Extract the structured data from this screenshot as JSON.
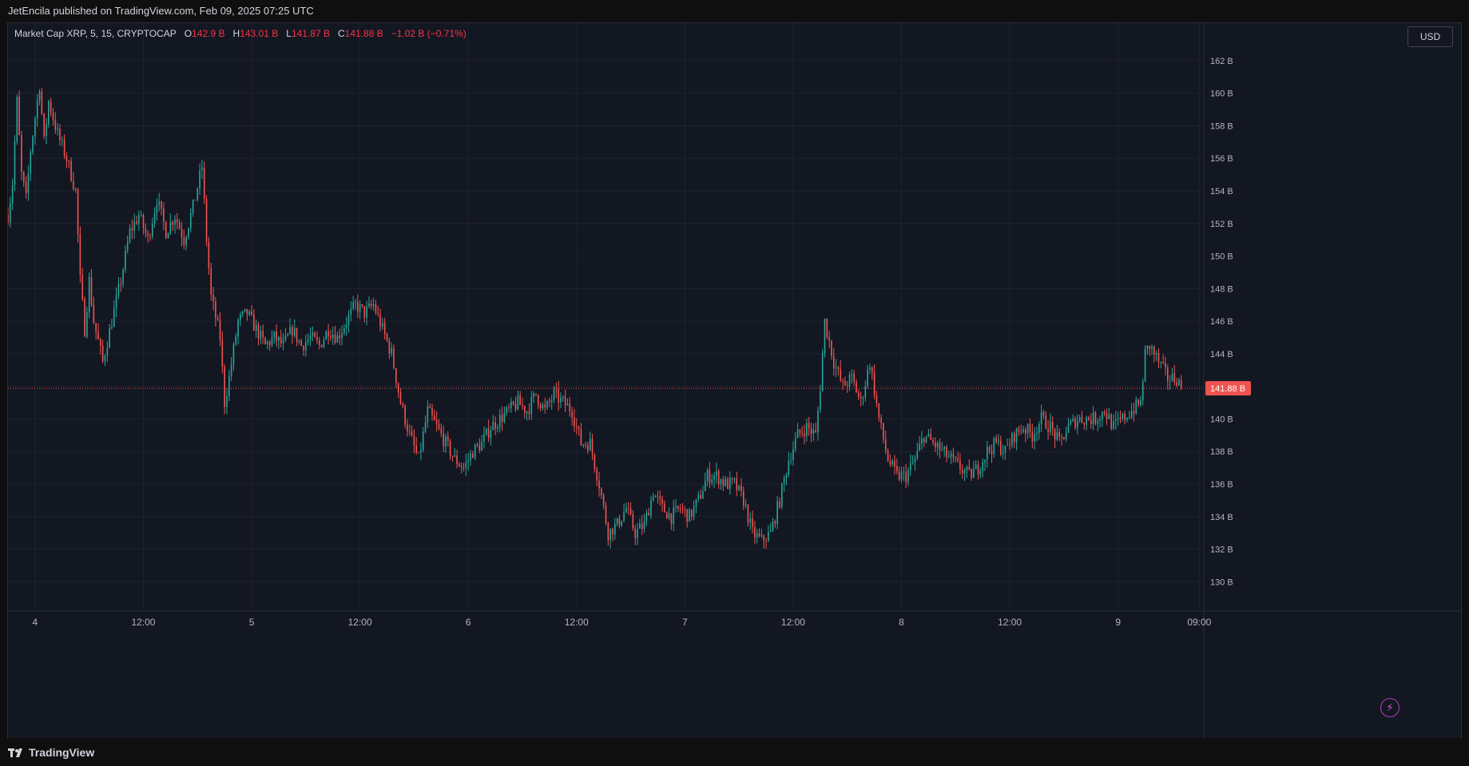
{
  "header": {
    "published_text": "JetEncila published on TradingView.com, Feb 09, 2025 07:25 UTC"
  },
  "legend": {
    "symbol_text": "Market Cap XRP, 5, 15, CRYPTOCAP",
    "o_label": "O",
    "o_value": "142.9 B",
    "h_label": "H",
    "h_value": "143.01 B",
    "l_label": "L",
    "l_value": "141.87 B",
    "c_label": "C",
    "c_value": "141.88 B",
    "change": "−1.02 B (−0.71%)"
  },
  "currency_button": "USD",
  "footer": {
    "brand": "TradingView"
  },
  "colors": {
    "up": "#26a69a",
    "down": "#ef5350",
    "bg": "#131722",
    "grid": "#1e222d",
    "price_line": "#ef5350"
  },
  "chart_data": {
    "type": "candlestick",
    "y_unit": "B",
    "ylim": [
      128.2,
      164.3
    ],
    "y_ticks": [
      "130 B",
      "132 B",
      "134 B",
      "136 B",
      "138 B",
      "140 B",
      "142 B",
      "144 B",
      "146 B",
      "148 B",
      "150 B",
      "152 B",
      "154 B",
      "156 B",
      "158 B",
      "160 B",
      "162 B"
    ],
    "y_tick_values": [
      130,
      132,
      134,
      136,
      138,
      140,
      142,
      144,
      146,
      148,
      150,
      152,
      154,
      156,
      158,
      160,
      162
    ],
    "x_ticks": [
      "4",
      "12:00",
      "5",
      "12:00",
      "6",
      "12:00",
      "7",
      "12:00",
      "8",
      "12:00",
      "9",
      "09:00"
    ],
    "x_tick_hours": [
      0,
      12,
      24,
      36,
      48,
      60,
      72,
      84,
      96,
      108,
      120,
      129
    ],
    "x_range_hours": [
      -3,
      129.5
    ],
    "current_price": 141.88,
    "current_price_label": "141.88 B",
    "close_path": [
      {
        "h": -3,
        "v": 152.5
      },
      {
        "h": -2.5,
        "v": 154.5
      },
      {
        "h": -2,
        "v": 159.5
      },
      {
        "h": -1.5,
        "v": 155
      },
      {
        "h": -1,
        "v": 153.5
      },
      {
        "h": -0.5,
        "v": 156.5
      },
      {
        "h": 0,
        "v": 158.5
      },
      {
        "h": 0.5,
        "v": 160.5
      },
      {
        "h": 1,
        "v": 157
      },
      {
        "h": 1.5,
        "v": 159.5
      },
      {
        "h": 2.5,
        "v": 157.5
      },
      {
        "h": 3.5,
        "v": 156
      },
      {
        "h": 4.5,
        "v": 154
      },
      {
        "h": 5,
        "v": 148.5
      },
      {
        "h": 5.5,
        "v": 145.5
      },
      {
        "h": 6,
        "v": 148.5
      },
      {
        "h": 6.5,
        "v": 146
      },
      {
        "h": 7.5,
        "v": 143.5
      },
      {
        "h": 8.5,
        "v": 146
      },
      {
        "h": 9.5,
        "v": 148.5
      },
      {
        "h": 10.5,
        "v": 151.5
      },
      {
        "h": 11.5,
        "v": 152.5
      },
      {
        "h": 12.5,
        "v": 151
      },
      {
        "h": 13.5,
        "v": 153.5
      },
      {
        "h": 14.5,
        "v": 151.5
      },
      {
        "h": 15.5,
        "v": 152.5
      },
      {
        "h": 16.5,
        "v": 151
      },
      {
        "h": 17.5,
        "v": 153
      },
      {
        "h": 18.5,
        "v": 155.5
      },
      {
        "h": 19,
        "v": 151
      },
      {
        "h": 19.5,
        "v": 147.5
      },
      {
        "h": 20.5,
        "v": 145
      },
      {
        "h": 21,
        "v": 141
      },
      {
        "h": 21.5,
        "v": 142.5
      },
      {
        "h": 22.5,
        "v": 146
      },
      {
        "h": 23.5,
        "v": 146.5
      },
      {
        "h": 24.5,
        "v": 145.5
      },
      {
        "h": 25.5,
        "v": 144.5
      },
      {
        "h": 26.5,
        "v": 145
      },
      {
        "h": 27.5,
        "v": 144.5
      },
      {
        "h": 28.5,
        "v": 145.5
      },
      {
        "h": 29.5,
        "v": 144.5
      },
      {
        "h": 30.5,
        "v": 145
      },
      {
        "h": 31.5,
        "v": 144.5
      },
      {
        "h": 32.5,
        "v": 145.5
      },
      {
        "h": 33.5,
        "v": 145
      },
      {
        "h": 34.5,
        "v": 146
      },
      {
        "h": 35.5,
        "v": 147
      },
      {
        "h": 36.5,
        "v": 146.5
      },
      {
        "h": 37.5,
        "v": 147
      },
      {
        "h": 38.5,
        "v": 145.5
      },
      {
        "h": 39.5,
        "v": 144
      },
      {
        "h": 40.5,
        "v": 141
      },
      {
        "h": 41.5,
        "v": 139
      },
      {
        "h": 42.5,
        "v": 137.5
      },
      {
        "h": 43.5,
        "v": 140.5
      },
      {
        "h": 44.5,
        "v": 139.5
      },
      {
        "h": 45.5,
        "v": 138.5
      },
      {
        "h": 46.5,
        "v": 137.5
      },
      {
        "h": 47.5,
        "v": 137
      },
      {
        "h": 48.5,
        "v": 138
      },
      {
        "h": 49.5,
        "v": 138.5
      },
      {
        "h": 50.5,
        "v": 139.5
      },
      {
        "h": 51.5,
        "v": 140
      },
      {
        "h": 52.5,
        "v": 140.5
      },
      {
        "h": 53.5,
        "v": 141
      },
      {
        "h": 54.5,
        "v": 140.5
      },
      {
        "h": 55.5,
        "v": 141.5
      },
      {
        "h": 56.5,
        "v": 140.5
      },
      {
        "h": 57.5,
        "v": 141.5
      },
      {
        "h": 58.5,
        "v": 141
      },
      {
        "h": 59.5,
        "v": 140.5
      },
      {
        "h": 60.5,
        "v": 138.5
      },
      {
        "h": 61.5,
        "v": 138.5
      },
      {
        "h": 62.5,
        "v": 136
      },
      {
        "h": 63.5,
        "v": 133
      },
      {
        "h": 64.5,
        "v": 133.5
      },
      {
        "h": 65.5,
        "v": 134.5
      },
      {
        "h": 66.5,
        "v": 133
      },
      {
        "h": 67.5,
        "v": 133.5
      },
      {
        "h": 68.5,
        "v": 135.5
      },
      {
        "h": 69.5,
        "v": 134.5
      },
      {
        "h": 70.5,
        "v": 134
      },
      {
        "h": 71.5,
        "v": 134.5
      },
      {
        "h": 72.5,
        "v": 134
      },
      {
        "h": 73.5,
        "v": 135
      },
      {
        "h": 74.5,
        "v": 136.5
      },
      {
        "h": 75.5,
        "v": 136.5
      },
      {
        "h": 76.5,
        "v": 136
      },
      {
        "h": 77.5,
        "v": 136
      },
      {
        "h": 78.5,
        "v": 135
      },
      {
        "h": 79.5,
        "v": 133
      },
      {
        "h": 80.5,
        "v": 132.5
      },
      {
        "h": 81.5,
        "v": 133
      },
      {
        "h": 82.5,
        "v": 135
      },
      {
        "h": 83.5,
        "v": 137.5
      },
      {
        "h": 84.5,
        "v": 139
      },
      {
        "h": 85.5,
        "v": 139.5
      },
      {
        "h": 86.5,
        "v": 139
      },
      {
        "h": 87,
        "v": 142
      },
      {
        "h": 87.5,
        "v": 146
      },
      {
        "h": 88.5,
        "v": 143.5
      },
      {
        "h": 89.5,
        "v": 142
      },
      {
        "h": 90.5,
        "v": 142.5
      },
      {
        "h": 91.5,
        "v": 141
      },
      {
        "h": 92.5,
        "v": 143.5
      },
      {
        "h": 93.5,
        "v": 140
      },
      {
        "h": 94.5,
        "v": 137.5
      },
      {
        "h": 95.5,
        "v": 136.5
      },
      {
        "h": 96.5,
        "v": 136.5
      },
      {
        "h": 97.5,
        "v": 137.5
      },
      {
        "h": 98.5,
        "v": 139
      },
      {
        "h": 99.5,
        "v": 138.5
      },
      {
        "h": 100.5,
        "v": 138
      },
      {
        "h": 101.5,
        "v": 137.5
      },
      {
        "h": 102.5,
        "v": 137
      },
      {
        "h": 103.5,
        "v": 136.5
      },
      {
        "h": 104.5,
        "v": 137
      },
      {
        "h": 105.5,
        "v": 138
      },
      {
        "h": 106.5,
        "v": 138.5
      },
      {
        "h": 107.5,
        "v": 138
      },
      {
        "h": 108.5,
        "v": 139
      },
      {
        "h": 109.5,
        "v": 139.5
      },
      {
        "h": 110.5,
        "v": 139
      },
      {
        "h": 111.5,
        "v": 140
      },
      {
        "h": 112.5,
        "v": 139.5
      },
      {
        "h": 113.5,
        "v": 138.5
      },
      {
        "h": 114.5,
        "v": 139.5
      },
      {
        "h": 115.5,
        "v": 140
      },
      {
        "h": 116.5,
        "v": 140
      },
      {
        "h": 117.5,
        "v": 140
      },
      {
        "h": 118.5,
        "v": 140.5
      },
      {
        "h": 119.5,
        "v": 139.5
      },
      {
        "h": 120.5,
        "v": 140
      },
      {
        "h": 121.5,
        "v": 140.5
      },
      {
        "h": 122.5,
        "v": 141
      },
      {
        "h": 123,
        "v": 144
      },
      {
        "h": 123.5,
        "v": 144.5
      },
      {
        "h": 124.5,
        "v": 143.5
      },
      {
        "h": 125.5,
        "v": 142.5
      },
      {
        "h": 126.5,
        "v": 142.5
      },
      {
        "h": 127,
        "v": 141.9
      }
    ]
  }
}
